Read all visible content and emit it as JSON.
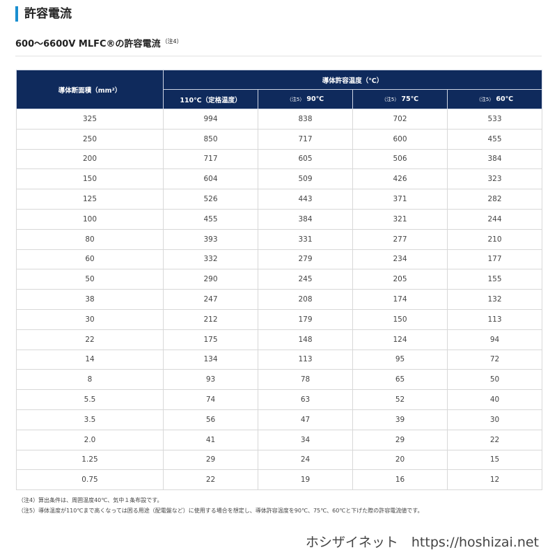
{
  "header": {
    "title": "許容電流"
  },
  "subtitle": {
    "text": "600〜6600V MLFC®の許容電流",
    "note": "（注4）"
  },
  "table": {
    "header_left": "導体断面積（mm²）",
    "header_group": "導体許容温度（℃）",
    "columns": [
      {
        "note": "",
        "label": "110℃（定格温度）"
      },
      {
        "note": "（注5）",
        "label": "90℃"
      },
      {
        "note": "（注5）",
        "label": "75℃"
      },
      {
        "note": "（注5）",
        "label": "60℃"
      }
    ],
    "rows": [
      [
        "325",
        "994",
        "838",
        "702",
        "533"
      ],
      [
        "250",
        "850",
        "717",
        "600",
        "455"
      ],
      [
        "200",
        "717",
        "605",
        "506",
        "384"
      ],
      [
        "150",
        "604",
        "509",
        "426",
        "323"
      ],
      [
        "125",
        "526",
        "443",
        "371",
        "282"
      ],
      [
        "100",
        "455",
        "384",
        "321",
        "244"
      ],
      [
        "80",
        "393",
        "331",
        "277",
        "210"
      ],
      [
        "60",
        "332",
        "279",
        "234",
        "177"
      ],
      [
        "50",
        "290",
        "245",
        "205",
        "155"
      ],
      [
        "38",
        "247",
        "208",
        "174",
        "132"
      ],
      [
        "30",
        "212",
        "179",
        "150",
        "113"
      ],
      [
        "22",
        "175",
        "148",
        "124",
        "94"
      ],
      [
        "14",
        "134",
        "113",
        "95",
        "72"
      ],
      [
        "8",
        "93",
        "78",
        "65",
        "50"
      ],
      [
        "5.5",
        "74",
        "63",
        "52",
        "40"
      ],
      [
        "3.5",
        "56",
        "47",
        "39",
        "30"
      ],
      [
        "2.0",
        "41",
        "34",
        "29",
        "22"
      ],
      [
        "1.25",
        "29",
        "24",
        "20",
        "15"
      ],
      [
        "0.75",
        "22",
        "19",
        "16",
        "12"
      ]
    ]
  },
  "footnotes": [
    "（注4）算出条件は、周囲温度40℃、気中１条布設です。",
    "（注5）導体温度が110℃まで高くなっては困る用途（配電盤など）に使用する場合を想定し、導体許容温度を90℃、75℃、60℃と下げた際の許容電流値です。"
  ],
  "watermark": "ホシザイネット　https://hoshizai.net"
}
